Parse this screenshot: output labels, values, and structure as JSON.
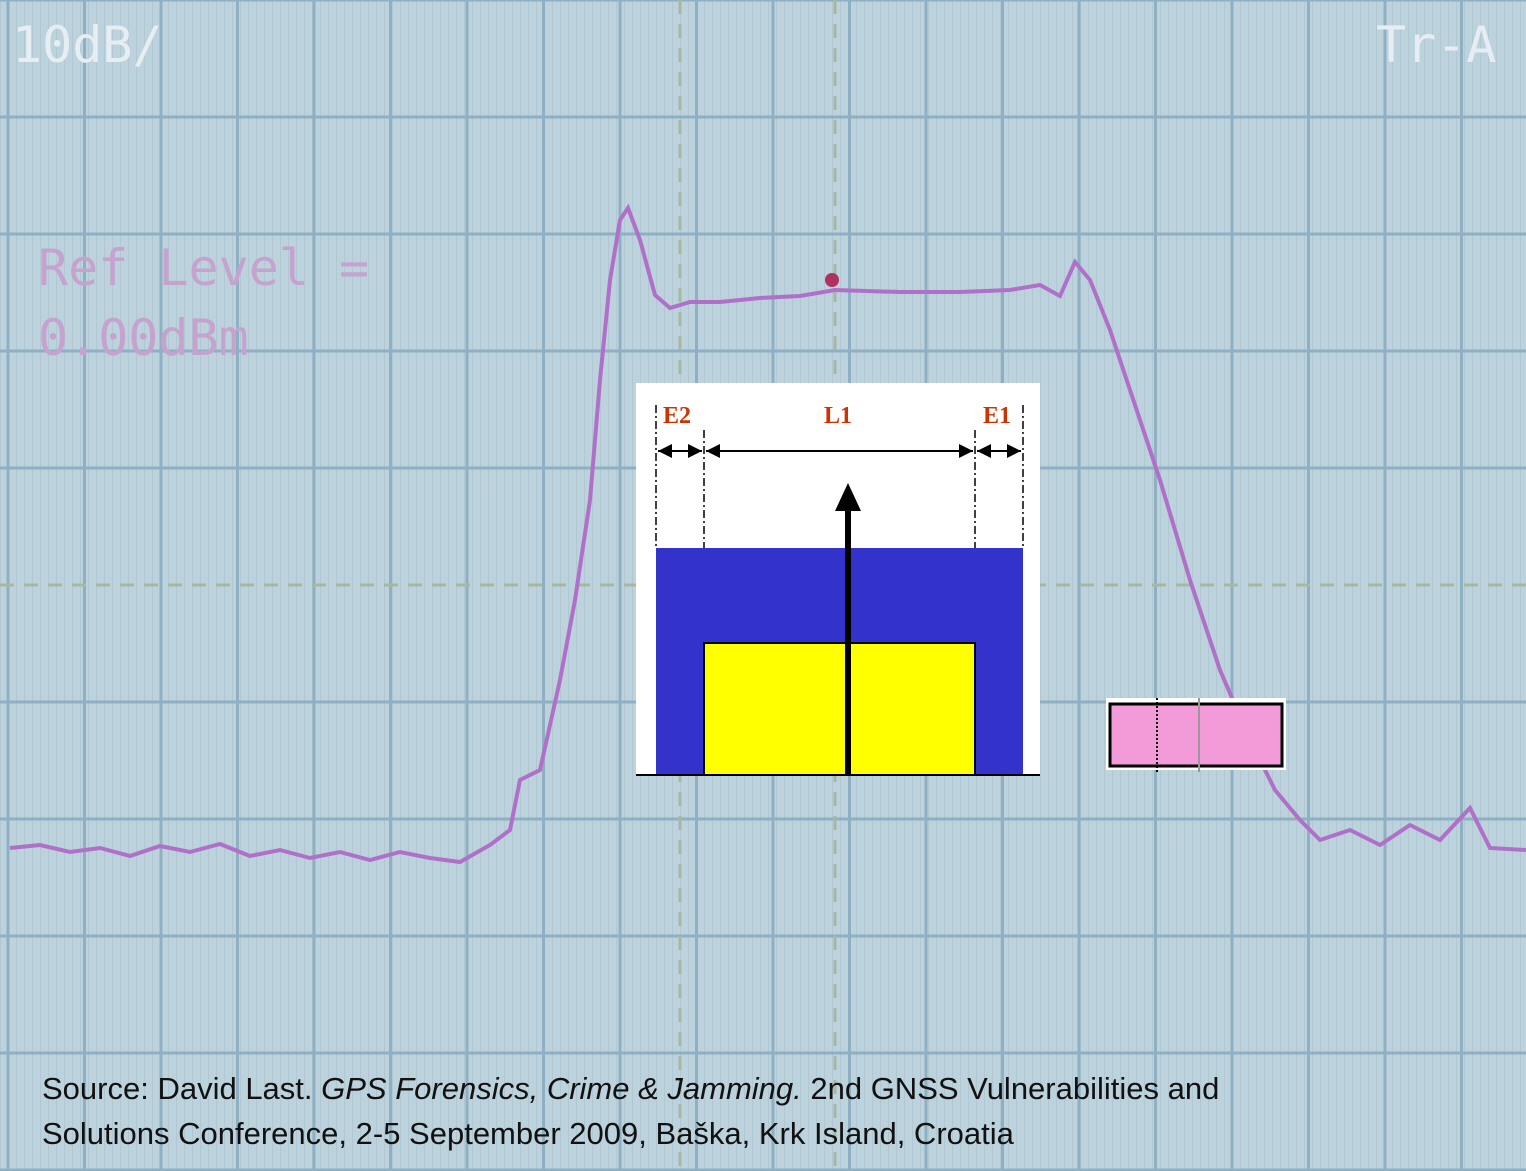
{
  "screen": {
    "scale": "10dB/",
    "trace": "Tr-A",
    "ref_line1": "Ref Level =",
    "ref_line2": "0.00dBm"
  },
  "diagram": {
    "left_label": "E2",
    "center_label": "L1",
    "right_label": "E1"
  },
  "source": {
    "prefix": "Source: David Last. ",
    "title": "GPS Forensics, Crime & Jamming.",
    "line1_rest": " 2nd GNSS Vulnerabilities and",
    "line2": "Solutions Conference, 2-5 September 2009, Baška, Krk Island, Croatia"
  }
}
